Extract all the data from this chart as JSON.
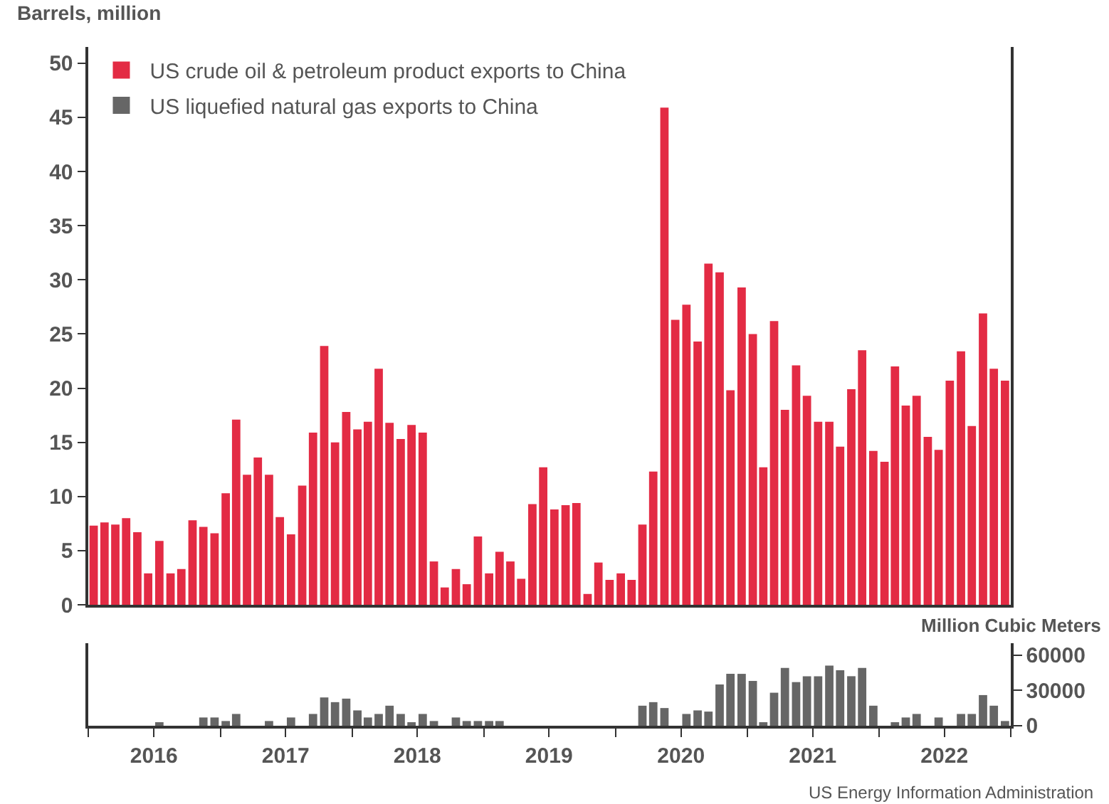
{
  "chart_data": [
    {
      "type": "bar",
      "ylabel": "Barrels, million",
      "x": [
        "2016-01-16",
        "2016-02-15",
        "2016-03-16",
        "2016-04-15",
        "2016-05-16",
        "2016-06-15",
        "2016-07-16",
        "2016-08-16",
        "2016-09-15",
        "2016-10-16",
        "2016-11-15",
        "2016-12-16",
        "2017-01-16",
        "2017-02-14",
        "2017-03-16",
        "2017-04-15",
        "2017-05-16",
        "2017-06-15",
        "2017-07-16",
        "2017-08-16",
        "2017-09-15",
        "2017-10-16",
        "2017-11-15",
        "2017-12-16",
        "2018-01-16",
        "2018-02-14",
        "2018-03-16",
        "2018-04-15",
        "2018-05-16",
        "2018-06-15",
        "2018-07-16",
        "2018-08-16",
        "2018-09-15",
        "2018-10-16",
        "2018-11-15",
        "2018-12-16",
        "2019-01-16",
        "2019-02-14",
        "2019-03-16",
        "2019-04-15",
        "2019-05-16",
        "2019-06-15",
        "2019-07-16",
        "2019-08-16",
        "2019-09-15",
        "2019-10-16",
        "2019-11-15",
        "2019-12-16",
        "2020-01-16",
        "2020-02-15",
        "2020-03-16",
        "2020-04-15",
        "2020-05-16",
        "2020-06-15",
        "2020-07-16",
        "2020-08-16",
        "2020-09-15",
        "2020-10-16",
        "2020-11-15",
        "2020-12-16",
        "2021-01-16",
        "2021-02-14",
        "2021-03-16",
        "2021-04-15",
        "2021-05-16",
        "2021-06-15",
        "2021-07-16",
        "2021-08-16",
        "2021-09-15",
        "2021-10-16",
        "2021-11-15",
        "2021-12-16",
        "2022-01-16",
        "2022-02-14",
        "2022-03-16",
        "2022-04-15",
        "2022-05-16",
        "2022-06-15",
        "2022-07-16",
        "2022-08-16",
        "2022-09-15",
        "2022-10-16",
        "2022-11-15",
        "2022-12-16"
      ],
      "series": [
        {
          "name": "US crude oil & petroleum product exports to China",
          "color": "#e32b44",
          "values": [
            7.3,
            7.6,
            7.4,
            8.0,
            6.7,
            2.9,
            5.9,
            2.9,
            3.3,
            7.8,
            7.2,
            6.6,
            10.3,
            17.1,
            12.0,
            13.6,
            12.0,
            8.1,
            6.5,
            11.0,
            15.9,
            23.9,
            15.0,
            17.8,
            16.2,
            16.9,
            21.8,
            16.8,
            15.3,
            16.6,
            15.9,
            4.0,
            1.6,
            3.3,
            1.9,
            6.3,
            2.9,
            4.9,
            4.0,
            2.4,
            9.3,
            12.7,
            8.8,
            9.2,
            9.4,
            1.0,
            3.9,
            2.3,
            2.9,
            2.3,
            7.4,
            12.3,
            45.9,
            26.3,
            27.7,
            24.3,
            31.5,
            30.7,
            19.8,
            29.3,
            25.0,
            12.7,
            26.2,
            18.0,
            22.1,
            19.3,
            16.9,
            16.9,
            14.6,
            19.9,
            23.5,
            14.2,
            13.2,
            22.0,
            18.4,
            19.3,
            15.5,
            14.3,
            20.7,
            23.4,
            16.5,
            26.9,
            21.8,
            20.7
          ]
        }
      ],
      "xlim": [
        "2016-01-01",
        "2023-01-01"
      ],
      "ylim": [
        0,
        51.5
      ],
      "yticks": [
        0,
        5,
        10,
        15,
        20,
        25,
        30,
        35,
        40,
        45,
        50
      ],
      "tick_labels": "y",
      "legend": "top left"
    },
    {
      "type": "bar",
      "ylabel": "Million Cubic Meters",
      "annotations": [
        "US Energy Information Administration"
      ],
      "x": [
        "2016-01-16",
        "2016-02-15",
        "2016-03-16",
        "2016-04-15",
        "2016-05-16",
        "2016-06-15",
        "2016-07-16",
        "2016-08-16",
        "2016-09-15",
        "2016-10-16",
        "2016-11-15",
        "2016-12-16",
        "2017-01-16",
        "2017-02-14",
        "2017-03-16",
        "2017-04-15",
        "2017-05-16",
        "2017-06-15",
        "2017-07-16",
        "2017-08-16",
        "2017-09-15",
        "2017-10-16",
        "2017-11-15",
        "2017-12-16",
        "2018-01-16",
        "2018-02-14",
        "2018-03-16",
        "2018-04-15",
        "2018-05-16",
        "2018-06-15",
        "2018-07-16",
        "2018-08-16",
        "2018-09-15",
        "2018-10-16",
        "2018-11-15",
        "2018-12-16",
        "2019-01-16",
        "2019-02-14",
        "2019-03-16",
        "2019-04-15",
        "2019-05-16",
        "2019-06-15",
        "2019-07-16",
        "2019-08-16",
        "2019-09-15",
        "2019-10-16",
        "2019-11-15",
        "2019-12-16",
        "2020-01-16",
        "2020-02-15",
        "2020-03-16",
        "2020-04-15",
        "2020-05-16",
        "2020-06-15",
        "2020-07-16",
        "2020-08-16",
        "2020-09-15",
        "2020-10-16",
        "2020-11-15",
        "2020-12-16",
        "2021-01-16",
        "2021-02-14",
        "2021-03-16",
        "2021-04-15",
        "2021-05-16",
        "2021-06-15",
        "2021-07-16",
        "2021-08-16",
        "2021-09-15",
        "2021-10-16",
        "2021-11-15",
        "2021-12-16",
        "2022-01-16",
        "2022-02-14",
        "2022-03-16",
        "2022-04-15",
        "2022-05-16",
        "2022-06-15",
        "2022-07-16",
        "2022-08-16",
        "2022-09-15",
        "2022-10-16",
        "2022-11-15",
        "2022-12-16"
      ],
      "series": [
        {
          "name": "US liquefied natural gas exports to China",
          "color": "#666666",
          "values": [
            0,
            0,
            0,
            0,
            0,
            0,
            3000,
            0,
            0,
            0,
            7000,
            7000,
            4000,
            10000,
            0,
            0,
            4000,
            0,
            7000,
            0,
            10000,
            24000,
            20000,
            23000,
            13000,
            7000,
            10000,
            17000,
            10000,
            3000,
            10000,
            4000,
            0,
            7000,
            4000,
            4000,
            4000,
            4000,
            0,
            0,
            0,
            0,
            0,
            0,
            0,
            0,
            0,
            0,
            0,
            0,
            17000,
            20000,
            15000,
            0,
            10000,
            13000,
            12000,
            35000,
            44000,
            44000,
            38000,
            3000,
            28000,
            49000,
            37000,
            42000,
            42000,
            51000,
            47000,
            42000,
            49000,
            17000,
            0,
            3000,
            7000,
            10000,
            0,
            7000,
            0,
            10000,
            10000,
            26000,
            17000,
            4000
          ]
        }
      ],
      "xlim": [
        "2016-01-01",
        "2023-01-01"
      ],
      "xticks": [
        {
          "value": "2016-01-01",
          "label": null
        },
        {
          "value": "2016-07-01",
          "label": "2016"
        },
        {
          "value": "2017-01-01",
          "label": null
        },
        {
          "value": "2017-07-01",
          "label": "2017"
        },
        {
          "value": "2018-01-01",
          "label": null
        },
        {
          "value": "2018-07-01",
          "label": "2018"
        },
        {
          "value": "2019-01-01",
          "label": null
        },
        {
          "value": "2019-07-01",
          "label": "2019"
        },
        {
          "value": "2020-01-01",
          "label": null
        },
        {
          "value": "2020-07-01",
          "label": "2020"
        },
        {
          "value": "2021-01-01",
          "label": null
        },
        {
          "value": "2021-07-01",
          "label": "2021"
        },
        {
          "value": "2022-01-01",
          "label": null
        },
        {
          "value": "2022-07-01",
          "label": "2022"
        },
        {
          "value": "2023-01-01",
          "label": null
        }
      ],
      "ylim": [
        0,
        70000
      ],
      "yticks": [
        0,
        30000,
        60000
      ],
      "legend": "top left"
    }
  ]
}
